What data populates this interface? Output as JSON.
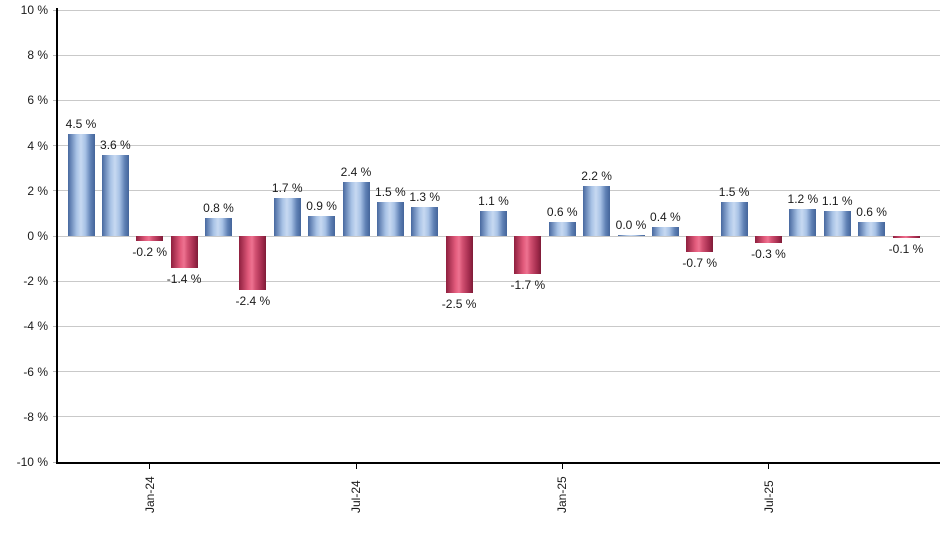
{
  "chart_data": {
    "type": "bar",
    "title": "",
    "xlabel": "",
    "ylabel": "",
    "ylim": [
      -10,
      10
    ],
    "ytick_step": 2,
    "ytick_label_suffix": " %",
    "grid": true,
    "legend": null,
    "values": [
      4.5,
      3.6,
      -0.2,
      -1.4,
      0.8,
      -2.4,
      1.7,
      0.9,
      2.4,
      1.5,
      1.3,
      -2.5,
      1.1,
      -1.7,
      0.6,
      2.2,
      0.0,
      0.4,
      -0.7,
      1.5,
      -0.3,
      1.2,
      1.1,
      0.6,
      -0.1
    ],
    "bar_value_labels": [
      "4.5 %",
      "3.6 %",
      "-0.2 %",
      "-1.4 %",
      "0.8 %",
      "-2.4 %",
      "1.7 %",
      "0.9 %",
      "2.4 %",
      "1.5 %",
      "1.3 %",
      "-2.5 %",
      "1.1 %",
      "-1.7 %",
      "0.6 %",
      "2.2 %",
      "0.0 %",
      "0.4 %",
      "-0.7 %",
      "1.5 %",
      "-0.3 %",
      "1.2 %",
      "1.1 %",
      "0.6 %",
      "-0.1 %"
    ],
    "x_ticks": [
      {
        "bar_index": 2,
        "label": "Jan-24"
      },
      {
        "bar_index": 8,
        "label": "Jul-24"
      },
      {
        "bar_index": 14,
        "label": "Jan-25"
      },
      {
        "bar_index": 20,
        "label": "Jul-25"
      }
    ]
  },
  "colors": {
    "positive_bar_edge": "#47689f",
    "positive_bar_mid": "#c7d9f1",
    "negative_bar_edge": "#8e1f3e",
    "negative_bar_mid": "#ee7290",
    "gridline": "#c9c9c9",
    "axis": "#000000",
    "label_text": "#1a1a1a",
    "background": "#ffffff"
  }
}
